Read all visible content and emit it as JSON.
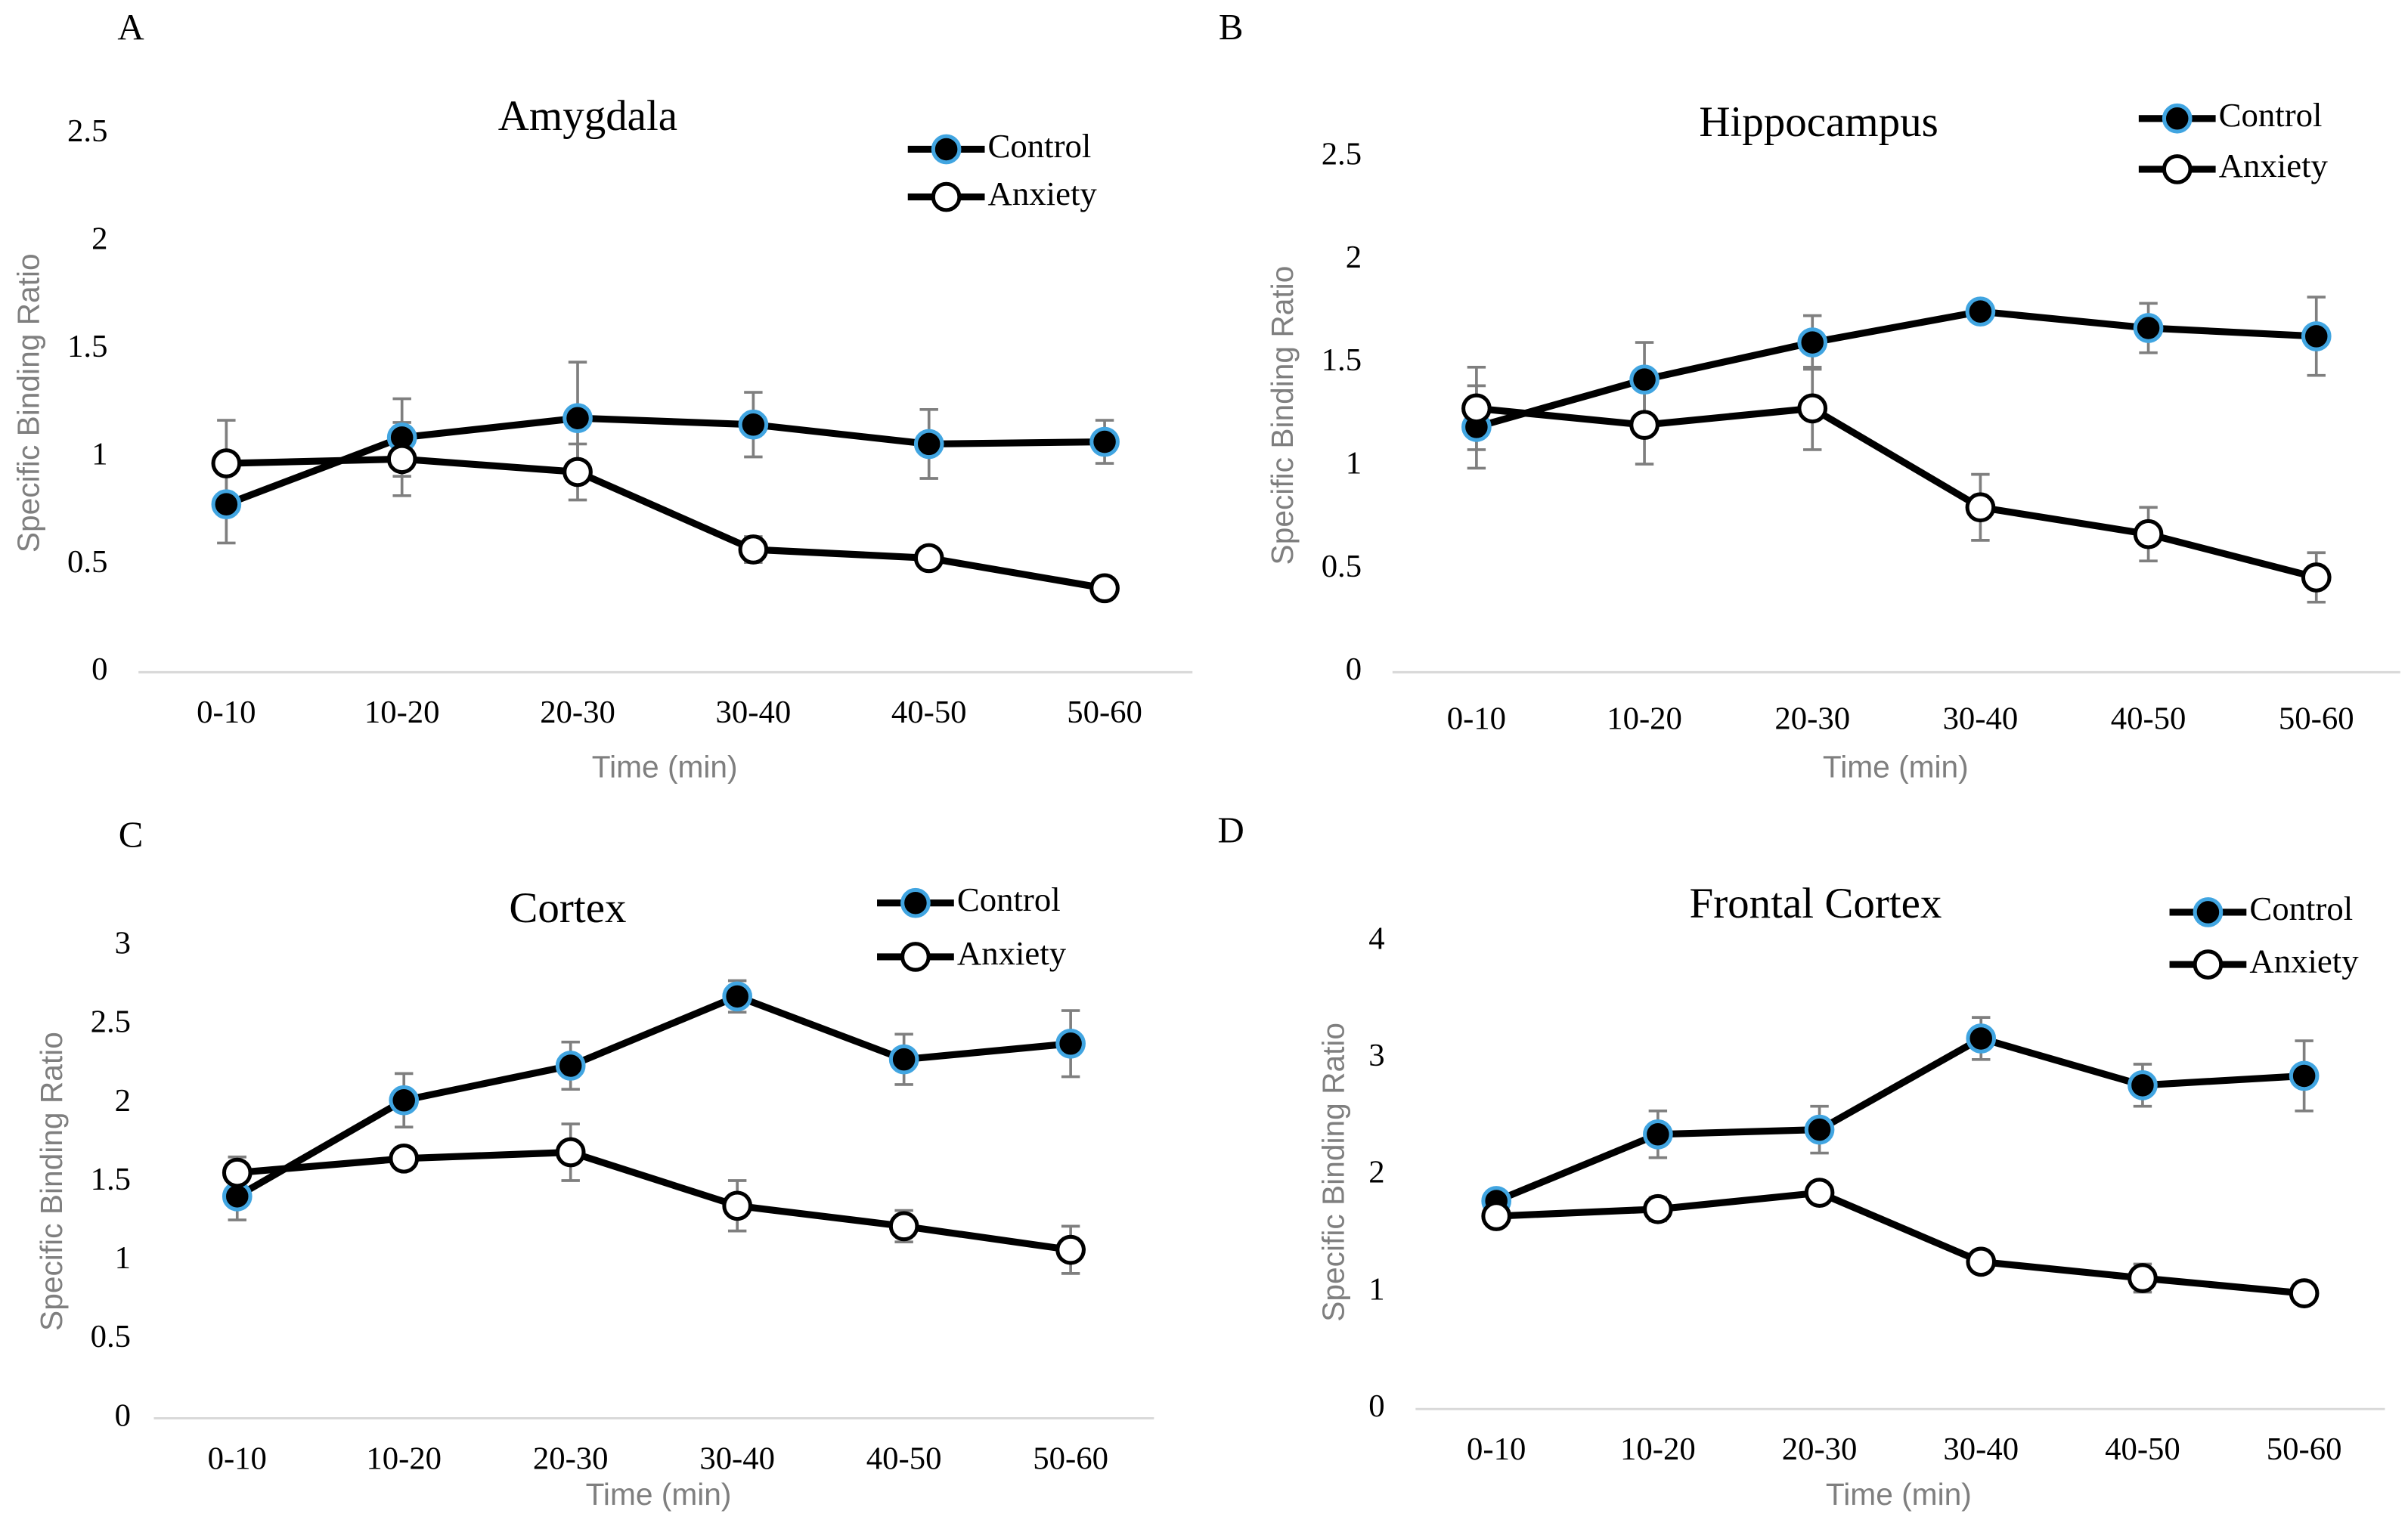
{
  "chart_data": [
    {
      "type": "line",
      "panel": "A",
      "title": "Amygdala",
      "xlabel": "Time (min)",
      "ylabel": "Specific Binding Ratio",
      "categories": [
        "0-10",
        "10-20",
        "20-30",
        "30-40",
        "40-50",
        "50-60"
      ],
      "series": [
        {
          "name": "Control",
          "color": "#000000",
          "marker_fill": "#000000",
          "marker_edge": "#41a5e1",
          "values": [
            0.78,
            1.09,
            1.18,
            1.15,
            1.06,
            1.07
          ],
          "errors": [
            0.18,
            0.18,
            0.26,
            0.15,
            0.16,
            0.1
          ]
        },
        {
          "name": "Anxiety",
          "color": "#000000",
          "marker_fill": "#ffffff",
          "marker_edge": "#000000",
          "values": [
            0.97,
            0.99,
            0.93,
            0.57,
            0.53,
            0.39
          ],
          "errors": [
            0.2,
            0.17,
            0.13,
            0.06,
            0.03,
            0.03
          ]
        }
      ],
      "ylim": [
        0,
        2.5
      ],
      "yticks": [
        0,
        0.5,
        1,
        1.5,
        2,
        2.5
      ],
      "grid": false
    },
    {
      "type": "line",
      "panel": "B",
      "title": "Hippocampus",
      "xlabel": "Time (min)",
      "ylabel": "Specific Binding Ratio",
      "categories": [
        "0-10",
        "10-20",
        "20-30",
        "30-40",
        "40-50",
        "50-60"
      ],
      "series": [
        {
          "name": "Control",
          "color": "#000000",
          "marker_fill": "#000000",
          "marker_edge": "#41a5e1",
          "values": [
            1.19,
            1.42,
            1.6,
            1.75,
            1.67,
            1.63
          ],
          "errors": [
            0.2,
            0.18,
            0.13,
            0.02,
            0.12,
            0.19
          ]
        },
        {
          "name": "Anxiety",
          "color": "#000000",
          "marker_fill": "#ffffff",
          "marker_edge": "#000000",
          "values": [
            1.28,
            1.2,
            1.28,
            0.8,
            0.67,
            0.46
          ],
          "errors": [
            0.2,
            0.19,
            0.2,
            0.16,
            0.13,
            0.12
          ]
        }
      ],
      "ylim": [
        0,
        2.5
      ],
      "yticks": [
        0,
        0.5,
        1,
        1.5,
        2,
        2.5
      ],
      "grid": false
    },
    {
      "type": "line",
      "panel": "C",
      "title": "Cortex",
      "xlabel": "Time (min)",
      "ylabel": "Specific Binding Ratio",
      "categories": [
        "0-10",
        "10-20",
        "20-30",
        "30-40",
        "40-50",
        "50-60"
      ],
      "series": [
        {
          "name": "Control",
          "color": "#000000",
          "marker_fill": "#000000",
          "marker_edge": "#41a5e1",
          "values": [
            1.41,
            2.02,
            2.24,
            2.68,
            2.28,
            2.38
          ],
          "errors": [
            0.15,
            0.17,
            0.15,
            0.1,
            0.16,
            0.21
          ]
        },
        {
          "name": "Anxiety",
          "color": "#000000",
          "marker_fill": "#ffffff",
          "marker_edge": "#000000",
          "values": [
            1.56,
            1.65,
            1.69,
            1.35,
            1.22,
            1.07
          ],
          "errors": [
            0.1,
            0.05,
            0.18,
            0.16,
            0.1,
            0.15
          ]
        }
      ],
      "ylim": [
        0,
        3
      ],
      "yticks": [
        0,
        0.5,
        1,
        1.5,
        2,
        2.5,
        3
      ],
      "grid": false
    },
    {
      "type": "line",
      "panel": "D",
      "title": "Frontal  Cortex",
      "xlabel": "Time (min)",
      "ylabel": "Specific Binding Ratio",
      "categories": [
        "0-10",
        "10-20",
        "20-30",
        "30-40",
        "40-50",
        "50-60"
      ],
      "series": [
        {
          "name": "Control",
          "color": "#000000",
          "marker_fill": "#000000",
          "marker_edge": "#41a5e1",
          "values": [
            1.78,
            2.35,
            2.39,
            3.17,
            2.77,
            2.85
          ],
          "errors": [
            0.08,
            0.2,
            0.2,
            0.18,
            0.18,
            0.3
          ]
        },
        {
          "name": "Anxiety",
          "color": "#000000",
          "marker_fill": "#ffffff",
          "marker_edge": "#000000",
          "values": [
            1.65,
            1.71,
            1.85,
            1.26,
            1.12,
            0.99
          ],
          "errors": [
            0.05,
            0.1,
            0.05,
            0.05,
            0.12,
            0.05
          ]
        }
      ],
      "ylim": [
        0,
        4
      ],
      "yticks": [
        0,
        1,
        2,
        3,
        4
      ],
      "grid": false
    }
  ]
}
